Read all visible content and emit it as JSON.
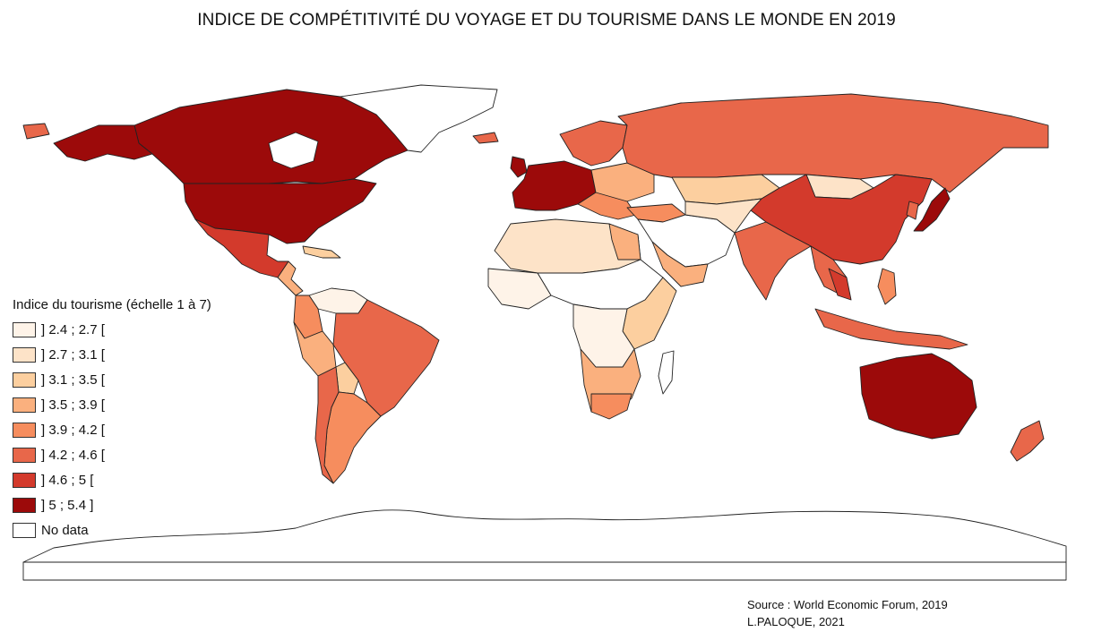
{
  "title": "INDICE DE COMPÉTITIVITÉ DU VOYAGE ET DU TOURISME DANS LE MONDE EN 2019",
  "legend": {
    "title": "Indice du tourisme (échelle 1 à 7)",
    "items": [
      {
        "label": "] 2.4 ; 2.7 [",
        "color": "#fef3e8"
      },
      {
        "label": "] 2.7 ; 3.1 [",
        "color": "#fde3c8"
      },
      {
        "label": "] 3.1 ; 3.5 [",
        "color": "#fccf9f"
      },
      {
        "label": "] 3.5 ; 3.9 [",
        "color": "#fab07e"
      },
      {
        "label": "] 3.9 ; 4.2 [",
        "color": "#f68d5e"
      },
      {
        "label": "] 4.2 ; 4.6 [",
        "color": "#e8674a"
      },
      {
        "label": "] 4.6 ; 5 [",
        "color": "#d33a2c"
      },
      {
        "label": "] 5 ; 5.4 ]",
        "color": "#9c0a0a"
      },
      {
        "label": "No data",
        "color": "#ffffff"
      }
    ]
  },
  "source": {
    "line1": "Source : World Economic Forum, 2019",
    "line2": "L.PALOQUE, 2021"
  }
}
